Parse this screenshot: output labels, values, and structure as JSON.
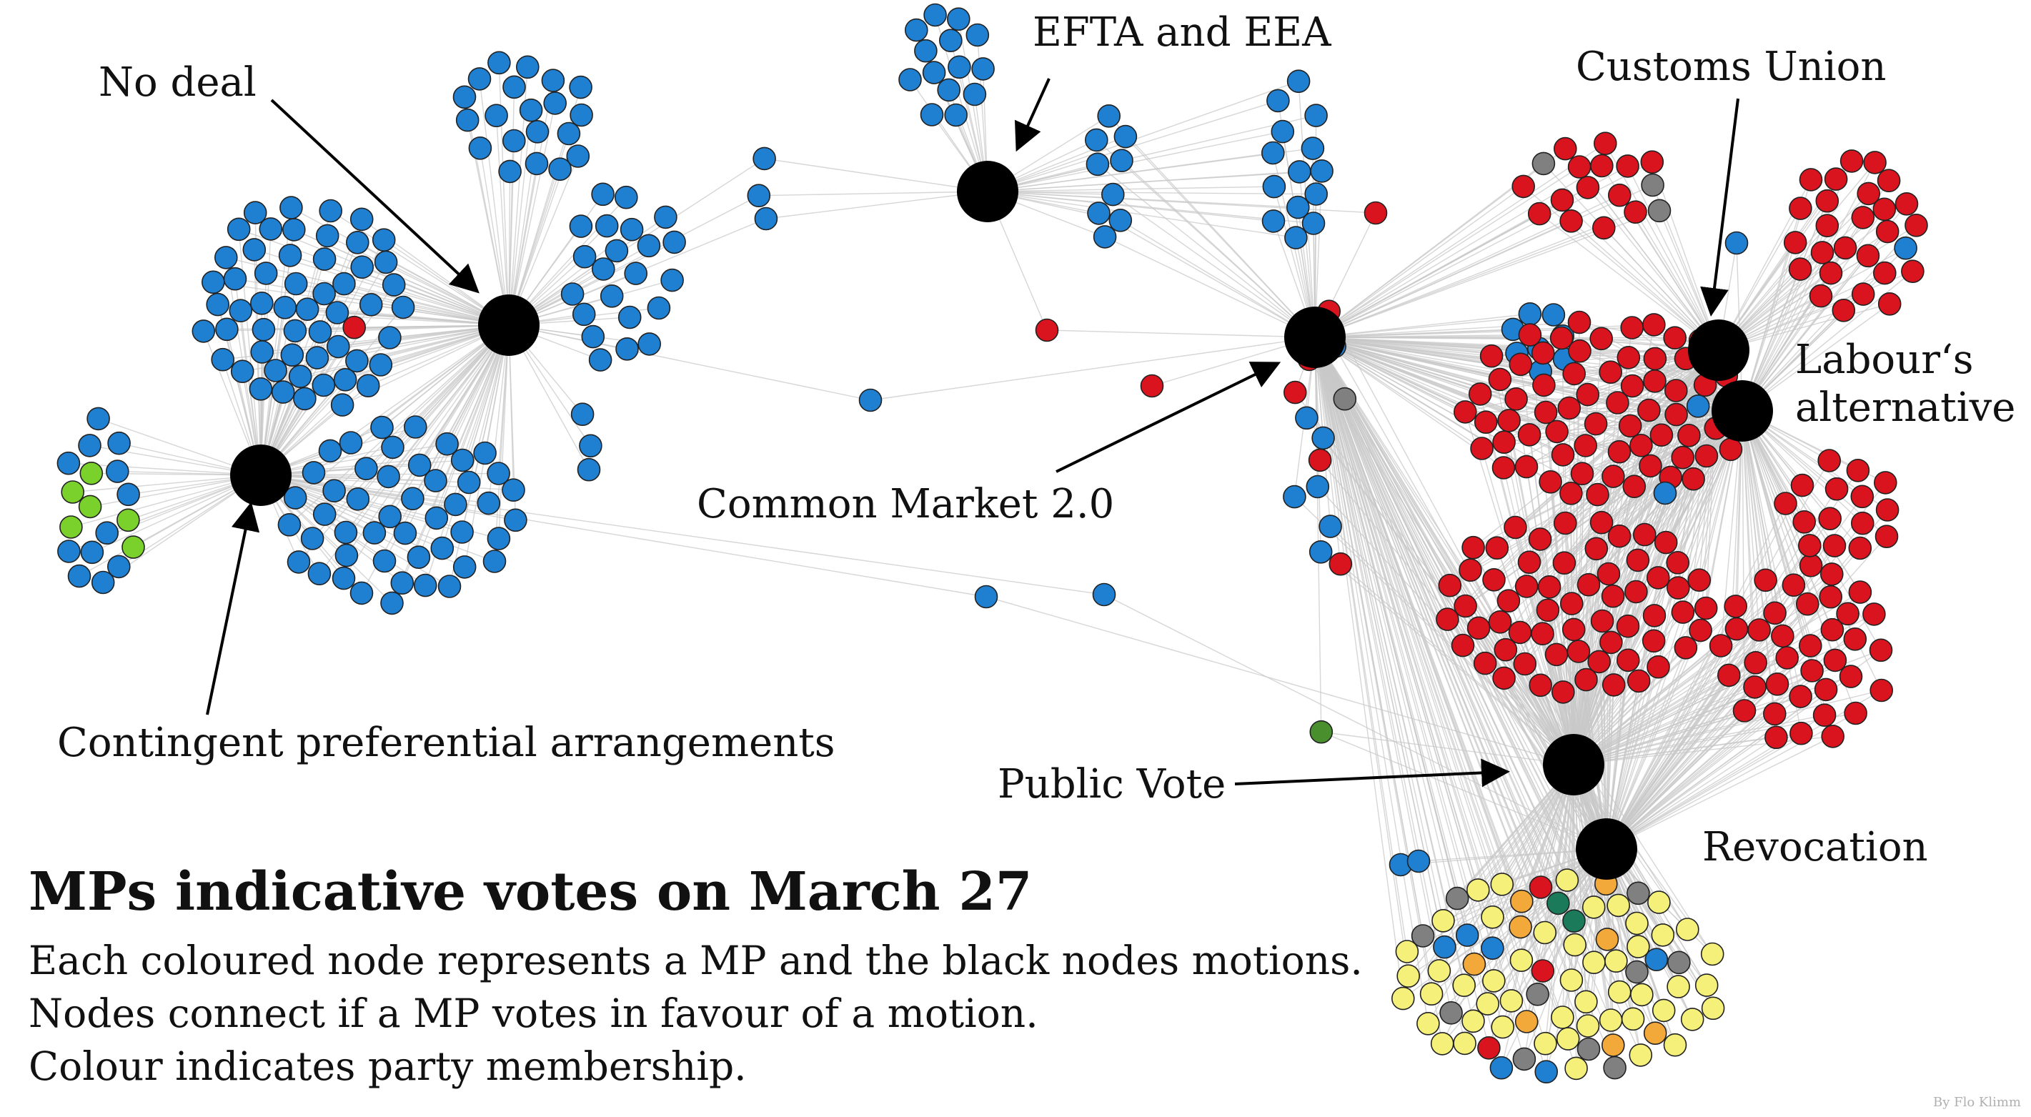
{
  "labels": {
    "no_deal": "No deal",
    "efta": "EFTA and EEA",
    "customs": "Customs Union",
    "labour_1": "Labour‘s",
    "labour_2": "alternative",
    "common_market": "Common Market 2.0",
    "contingent": "Contingent preferential arrangements",
    "public_vote": "Public Vote",
    "revocation": "Revocation"
  },
  "heading": {
    "title": "MPs indicative votes on March 27",
    "line1": "Each coloured node represents a MP and the black nodes motions.",
    "line2": "Nodes connect if a MP votes in favour of a motion.",
    "line3": "Colour indicates party membership."
  },
  "credit": "By Flo Klimm",
  "colors": {
    "conservative": "#1f7fd1",
    "labour": "#d9141e",
    "snp": "#f5f07a",
    "libdem": "#f3a93a",
    "green": "#4a8f2e",
    "plaid": "#7bd12b",
    "independent": "#808080",
    "other": "#1a7a5a",
    "motion": "#000000",
    "edge": "#c8c8c8"
  }
}
